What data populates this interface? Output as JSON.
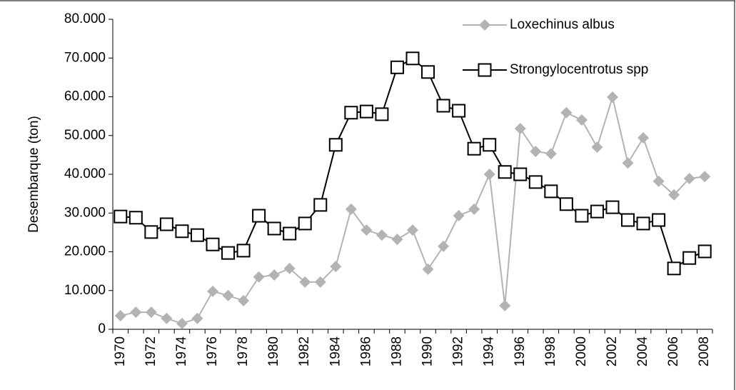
{
  "chart_data": {
    "type": "line",
    "y_label": "Desembarque (ton)",
    "categories": [
      "1970",
      null,
      "1972",
      null,
      "1974",
      null,
      "1976",
      null,
      "1978",
      null,
      "1980",
      null,
      "1982",
      null,
      "1984",
      null,
      "1986",
      null,
      "1988",
      null,
      "1990",
      null,
      "1992",
      null,
      "1994",
      null,
      "1996",
      null,
      "1998",
      null,
      "2000",
      null,
      "2002",
      null,
      "2004",
      null,
      "2006",
      null,
      "2008"
    ],
    "series": [
      {
        "name": "Loxechinus albus",
        "color": "#b3b3b3",
        "marker": "diamond",
        "values": [
          3500,
          4400,
          4400,
          2800,
          1500,
          2800,
          9800,
          8700,
          7400,
          13500,
          14000,
          15700,
          12200,
          12200,
          16200,
          31000,
          25600,
          24300,
          23200,
          25600,
          15500,
          21400,
          29300,
          31000,
          40000,
          6100,
          51800,
          45900,
          45300,
          55900,
          54000,
          47000,
          59900,
          42900,
          49400,
          38200,
          34700,
          38900,
          39400
        ]
      },
      {
        "name": "Strongylocentrotus spp",
        "color": "#000000",
        "marker": "square",
        "values": [
          29100,
          28800,
          25100,
          27100,
          25300,
          24300,
          21900,
          19700,
          20300,
          29300,
          26000,
          24700,
          27300,
          32100,
          47600,
          55900,
          56200,
          55500,
          67600,
          69900,
          66400,
          57700,
          56400,
          46600,
          47600,
          40600,
          40000,
          38000,
          35600,
          32300,
          29300,
          30400,
          31500,
          28200,
          27300,
          28200,
          15700,
          18400,
          20100
        ]
      }
    ],
    "ylim": [
      0,
      80000
    ],
    "yticks": [
      0,
      {
        "value": 10000,
        "label": "10.000"
      },
      {
        "value": 20000,
        "label": "20.000"
      },
      {
        "value": 30000,
        "label": "30.000"
      },
      {
        "value": 40000,
        "label": "40.000"
      },
      {
        "value": 50000,
        "label": "50.000"
      },
      {
        "value": 60000,
        "label": "60.000"
      },
      {
        "value": 70000,
        "label": "70.000"
      },
      {
        "value": 80000,
        "label": "80.000"
      }
    ],
    "grid": false,
    "legend": "top-right"
  }
}
